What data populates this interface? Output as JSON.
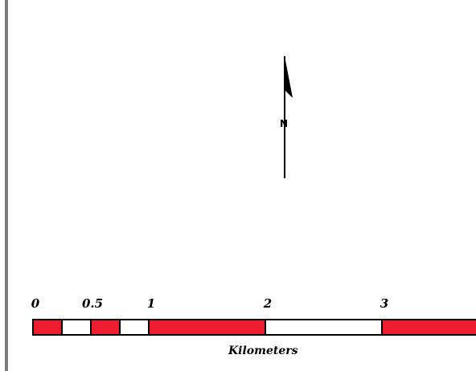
{
  "map": {
    "north_arrow": {
      "label": "N",
      "icon": "north-arrow-icon"
    },
    "scale_bar": {
      "tick_labels": [
        "0",
        "0.5",
        "1",
        "2",
        "3"
      ],
      "units": "Kilometers",
      "colors": {
        "filled": "#ee1c2e",
        "empty": "#ffffff",
        "outline": "#000000"
      }
    },
    "frame": {
      "border_color": "#7a7a7a"
    }
  }
}
